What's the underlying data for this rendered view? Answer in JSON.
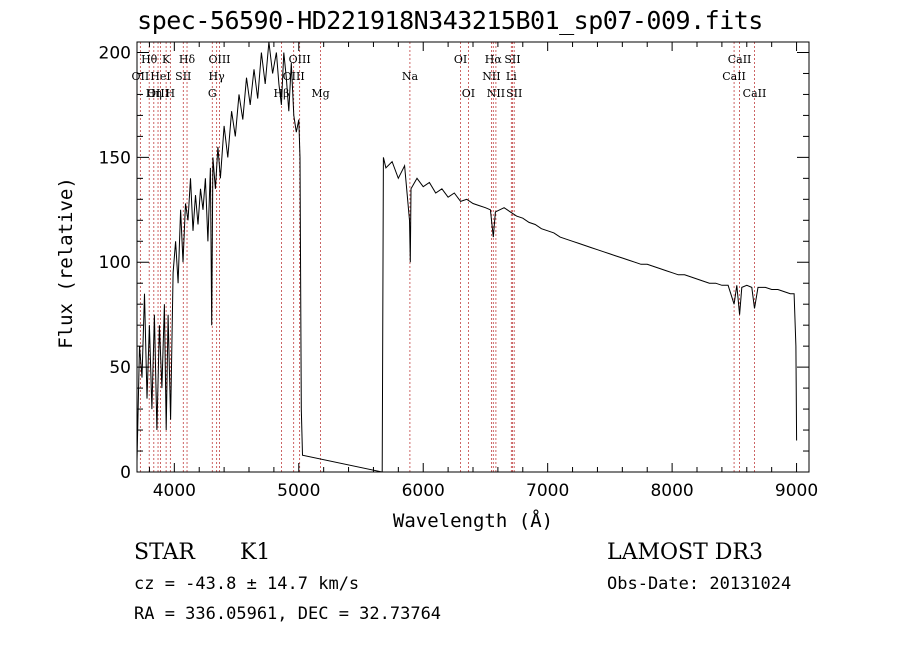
{
  "chart_data": {
    "type": "line",
    "title": "spec-56590-HD221918N343215B01_sp07-009.fits",
    "xlabel": "Wavelength (Å)",
    "ylabel": "Flux (relative)",
    "xlim": [
      3700,
      9100
    ],
    "ylim": [
      0,
      205
    ],
    "x_ticks": [
      4000,
      5000,
      6000,
      7000,
      8000,
      9000
    ],
    "y_ticks": [
      0,
      50,
      100,
      150,
      200
    ],
    "grid": false,
    "series": [
      {
        "name": "spectrum",
        "color": "#000000",
        "points": [
          [
            3700,
            5
          ],
          [
            3720,
            60
          ],
          [
            3740,
            45
          ],
          [
            3760,
            85
          ],
          [
            3780,
            35
          ],
          [
            3800,
            70
          ],
          [
            3820,
            30
          ],
          [
            3840,
            75
          ],
          [
            3860,
            20
          ],
          [
            3880,
            70
          ],
          [
            3900,
            40
          ],
          [
            3920,
            80
          ],
          [
            3935,
            20
          ],
          [
            3950,
            75
          ],
          [
            3970,
            25
          ],
          [
            3990,
            95
          ],
          [
            4010,
            110
          ],
          [
            4030,
            90
          ],
          [
            4050,
            125
          ],
          [
            4070,
            100
          ],
          [
            4090,
            128
          ],
          [
            4110,
            120
          ],
          [
            4130,
            140
          ],
          [
            4150,
            115
          ],
          [
            4170,
            132
          ],
          [
            4190,
            118
          ],
          [
            4210,
            135
          ],
          [
            4230,
            125
          ],
          [
            4250,
            140
          ],
          [
            4270,
            110
          ],
          [
            4290,
            145
          ],
          [
            4300,
            70
          ],
          [
            4310,
            150
          ],
          [
            4330,
            135
          ],
          [
            4350,
            155
          ],
          [
            4370,
            140
          ],
          [
            4400,
            165
          ],
          [
            4430,
            150
          ],
          [
            4460,
            172
          ],
          [
            4490,
            160
          ],
          [
            4520,
            180
          ],
          [
            4550,
            168
          ],
          [
            4580,
            188
          ],
          [
            4610,
            175
          ],
          [
            4640,
            192
          ],
          [
            4670,
            178
          ],
          [
            4700,
            200
          ],
          [
            4730,
            185
          ],
          [
            4760,
            205
          ],
          [
            4790,
            190
          ],
          [
            4820,
            200
          ],
          [
            4840,
            185
          ],
          [
            4860,
            175
          ],
          [
            4880,
            200
          ],
          [
            4900,
            188
          ],
          [
            4920,
            172
          ],
          [
            4940,
            195
          ],
          [
            4960,
            170
          ],
          [
            4980,
            162
          ],
          [
            5000,
            168
          ],
          [
            5010,
            150
          ],
          [
            5020,
            30
          ],
          [
            5030,
            8
          ],
          [
            5670,
            0
          ],
          [
            5680,
            150
          ],
          [
            5700,
            145
          ],
          [
            5750,
            148
          ],
          [
            5800,
            140
          ],
          [
            5850,
            146
          ],
          [
            5890,
            120
          ],
          [
            5896,
            100
          ],
          [
            5902,
            135
          ],
          [
            5950,
            140
          ],
          [
            6000,
            136
          ],
          [
            6050,
            138
          ],
          [
            6100,
            133
          ],
          [
            6150,
            135
          ],
          [
            6200,
            131
          ],
          [
            6250,
            133
          ],
          [
            6300,
            129
          ],
          [
            6350,
            130
          ],
          [
            6400,
            128
          ],
          [
            6450,
            127
          ],
          [
            6500,
            126
          ],
          [
            6540,
            125
          ],
          [
            6563,
            112
          ],
          [
            6580,
            124
          ],
          [
            6650,
            126
          ],
          [
            6700,
            124
          ],
          [
            6750,
            122
          ],
          [
            6800,
            121
          ],
          [
            6850,
            119
          ],
          [
            6900,
            118
          ],
          [
            6950,
            116
          ],
          [
            7000,
            115
          ],
          [
            7050,
            114
          ],
          [
            7100,
            112
          ],
          [
            7150,
            111
          ],
          [
            7200,
            110
          ],
          [
            7250,
            109
          ],
          [
            7300,
            108
          ],
          [
            7350,
            107
          ],
          [
            7400,
            106
          ],
          [
            7450,
            105
          ],
          [
            7500,
            104
          ],
          [
            7550,
            103
          ],
          [
            7600,
            102
          ],
          [
            7650,
            101
          ],
          [
            7700,
            100
          ],
          [
            7750,
            99
          ],
          [
            7800,
            99
          ],
          [
            7850,
            98
          ],
          [
            7900,
            97
          ],
          [
            7950,
            96
          ],
          [
            8000,
            95
          ],
          [
            8050,
            94
          ],
          [
            8100,
            94
          ],
          [
            8150,
            93
          ],
          [
            8200,
            92
          ],
          [
            8250,
            91
          ],
          [
            8300,
            90
          ],
          [
            8350,
            90
          ],
          [
            8400,
            89
          ],
          [
            8450,
            89
          ],
          [
            8498,
            80
          ],
          [
            8520,
            89
          ],
          [
            8542,
            75
          ],
          [
            8560,
            88
          ],
          [
            8600,
            89
          ],
          [
            8640,
            88
          ],
          [
            8662,
            78
          ],
          [
            8690,
            88
          ],
          [
            8750,
            88
          ],
          [
            8800,
            87
          ],
          [
            8850,
            87
          ],
          [
            8900,
            86
          ],
          [
            8950,
            85
          ],
          [
            8980,
            85
          ],
          [
            8995,
            60
          ],
          [
            9000,
            15
          ]
        ]
      }
    ],
    "line_markers": [
      {
        "label": "Hθ",
        "wavelength": 3798,
        "row": 1
      },
      {
        "label": "OII",
        "wavelength": 3727,
        "row": 2
      },
      {
        "label": "OIII",
        "wavelength": 3869,
        "row": 3
      },
      {
        "label": "K",
        "wavelength": 3934,
        "row": 1
      },
      {
        "label": "HeI",
        "wavelength": 3889,
        "row": 2
      },
      {
        "label": "Hη",
        "wavelength": 3835,
        "row": 3
      },
      {
        "label": "SII",
        "wavelength": 4072,
        "row": 2
      },
      {
        "label": "H",
        "wavelength": 3968,
        "row": 3
      },
      {
        "label": "Hδ",
        "wavelength": 4102,
        "row": 1
      },
      {
        "label": "OIII",
        "wavelength": 4363,
        "row": 1
      },
      {
        "label": "Hγ",
        "wavelength": 4340,
        "row": 2
      },
      {
        "label": "G",
        "wavelength": 4305,
        "row": 3
      },
      {
        "label": "Hβ",
        "wavelength": 4861,
        "row": 3
      },
      {
        "label": "OIII",
        "wavelength": 5007,
        "row": 1
      },
      {
        "label": "OIII",
        "wavelength": 4959,
        "row": 2
      },
      {
        "label": "Mg",
        "wavelength": 5175,
        "row": 3
      },
      {
        "label": "Na",
        "wavelength": 5893,
        "row": 2
      },
      {
        "label": "OI",
        "wavelength": 6300,
        "row": 1
      },
      {
        "label": "OI",
        "wavelength": 6363,
        "row": 3
      },
      {
        "label": "Hα",
        "wavelength": 6563,
        "row": 1
      },
      {
        "label": "NII",
        "wavelength": 6548,
        "row": 2
      },
      {
        "label": "NII",
        "wavelength": 6584,
        "row": 3
      },
      {
        "label": "SII",
        "wavelength": 6717,
        "row": 1
      },
      {
        "label": "Li",
        "wavelength": 6708,
        "row": 2
      },
      {
        "label": "SII",
        "wavelength": 6731,
        "row": 3
      },
      {
        "label": "CaII",
        "wavelength": 8542,
        "row": 1
      },
      {
        "label": "CaII",
        "wavelength": 8498,
        "row": 2
      },
      {
        "label": "CaII",
        "wavelength": 8662,
        "row": 3
      }
    ]
  },
  "info": {
    "class_label": "STAR",
    "subclass": "K1",
    "survey": "LAMOST DR3",
    "cz": "cz = -43.8 ± 14.7 km/s",
    "obs_date": "Obs-Date: 20131024",
    "coords": "RA = 336.05961, DEC =  32.73764"
  }
}
